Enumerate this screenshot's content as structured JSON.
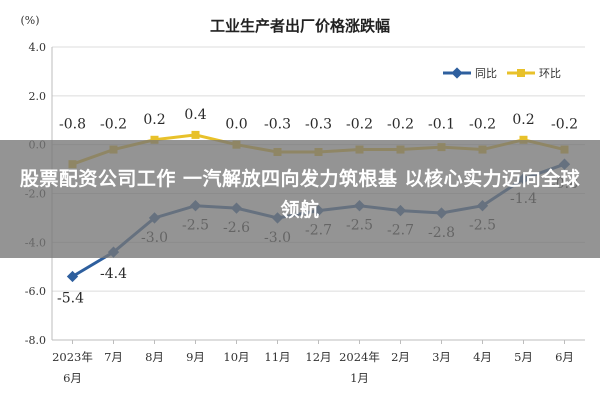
{
  "chart_data": {
    "type": "line",
    "title": "工业生产者出厂价格涨跌幅",
    "ylabel": "(%)",
    "ylim": [
      -8.0,
      4.0
    ],
    "yticks": [
      "4.0",
      "2.0",
      "0.0",
      "-2.0",
      "-4.0",
      "-6.0",
      "-8.0"
    ],
    "grid": true,
    "legend_position": "top-right",
    "categories": [
      {
        "line1": "2023年",
        "line2": "6月"
      },
      {
        "line1": "7月",
        "line2": ""
      },
      {
        "line1": "8月",
        "line2": ""
      },
      {
        "line1": "9月",
        "line2": ""
      },
      {
        "line1": "10月",
        "line2": ""
      },
      {
        "line1": "11月",
        "line2": ""
      },
      {
        "line1": "12月",
        "line2": ""
      },
      {
        "line1": "2024年",
        "line2": "1月"
      },
      {
        "line1": "2月",
        "line2": ""
      },
      {
        "line1": "3月",
        "line2": ""
      },
      {
        "line1": "4月",
        "line2": ""
      },
      {
        "line1": "5月",
        "line2": ""
      },
      {
        "line1": "6月",
        "line2": ""
      }
    ],
    "series": [
      {
        "name": "同比",
        "color": "#2e5f9e",
        "values": [
          -5.4,
          -4.4,
          -3.0,
          -2.5,
          -2.6,
          -3.0,
          -2.7,
          -2.5,
          -2.7,
          -2.8,
          -2.5,
          -1.4,
          -0.8
        ],
        "labels": [
          "-5.4",
          "-4.4",
          "-3.0",
          "-2.5",
          "-2.6",
          "-3.0",
          "-2.7",
          "-2.5",
          "-2.7",
          "-2.8",
          "-2.5",
          "-1.4",
          "-0.8"
        ]
      },
      {
        "name": "环比",
        "color": "#e8c12a",
        "values": [
          -0.8,
          -0.2,
          0.2,
          0.4,
          0.0,
          -0.3,
          -0.3,
          -0.2,
          -0.2,
          -0.1,
          -0.2,
          0.2,
          -0.2
        ],
        "labels": [
          "-0.8",
          "-0.2",
          "0.2",
          "0.4",
          "0.0",
          "-0.3",
          "-0.3",
          "-0.2",
          "-0.2",
          "-0.1",
          "-0.2",
          "0.2",
          "-0.2"
        ]
      }
    ]
  },
  "overlay": {
    "headline": "股票配资公司工作 一汽解放四向发力筑根基 以核心实力迈向全球领航"
  }
}
